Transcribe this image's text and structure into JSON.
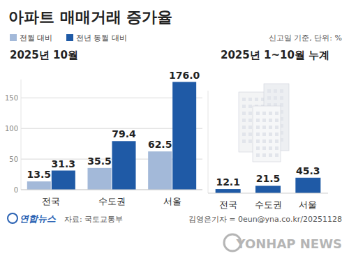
{
  "header": {
    "title": "아파트 매매거래 증가율",
    "note": "신고일 기준, 단위: %"
  },
  "chart_data": [
    {
      "type": "bar",
      "title": "2025년 10월",
      "categories": [
        "전국",
        "수도권",
        "서울"
      ],
      "series": [
        {
          "name": "전월 대비",
          "color": "#a3b9d9",
          "values": [
            13.5,
            35.5,
            62.5
          ],
          "value_labels": [
            "13.5",
            "35.5",
            "62.5"
          ]
        },
        {
          "name": "전년 동월 대비",
          "color": "#1f5aa6",
          "values": [
            31.3,
            79.4,
            176.0
          ],
          "value_labels": [
            "31.3",
            "79.4",
            "176.0"
          ]
        }
      ],
      "ylim": [
        0,
        180
      ],
      "yticks": [
        0,
        50,
        100,
        150
      ],
      "grid": true,
      "legend": "top-left",
      "data_labels": true
    },
    {
      "type": "bar",
      "title": "2025년 1~10월 누계",
      "categories": [
        "전국",
        "수도권",
        "서울"
      ],
      "values": [
        12.1,
        21.5,
        45.3
      ],
      "value_labels": [
        "12.1",
        "21.5",
        "45.3"
      ],
      "color": "#1f5aa6",
      "ylim": [
        0,
        300
      ],
      "grid": false,
      "tick_labels": false,
      "data_labels": true
    }
  ],
  "footer": {
    "logo": "연합뉴스",
    "source": "자료: 국토교통부",
    "credit": "김영은기자 = 0eun@yna.co.kr/20251128",
    "watermark": "YONHAP NEWS"
  }
}
